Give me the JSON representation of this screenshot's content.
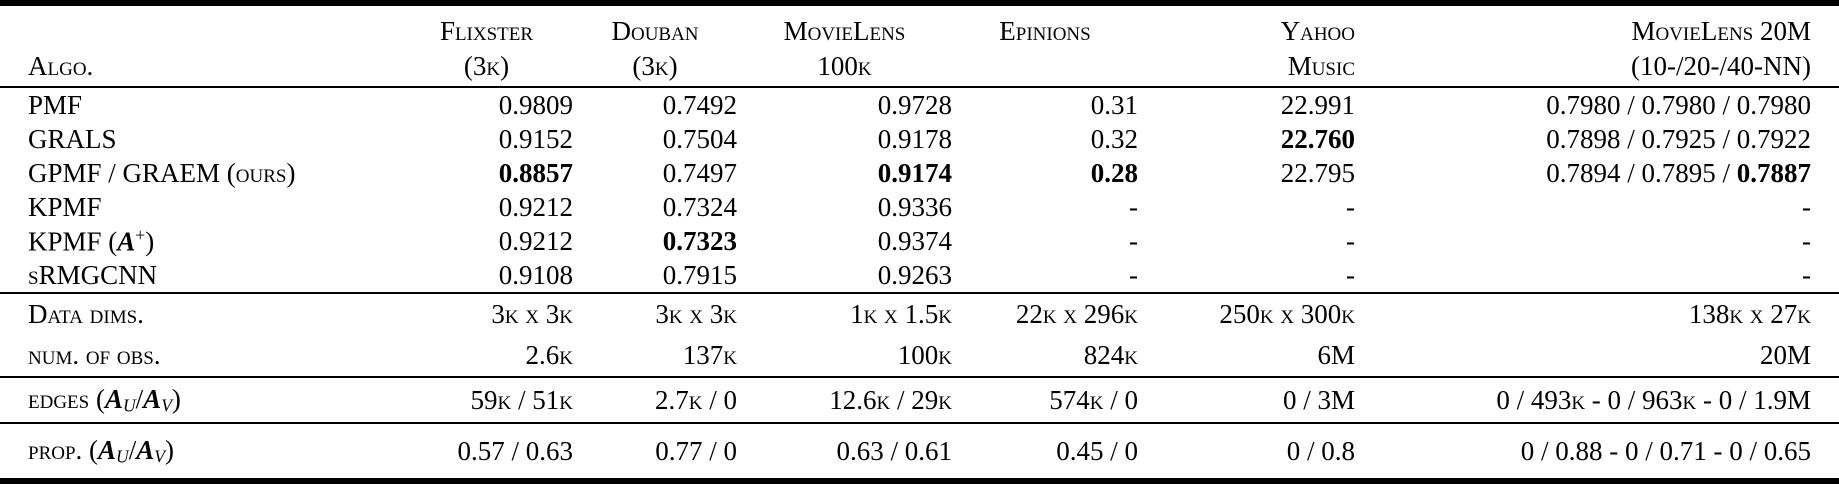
{
  "table": {
    "header": {
      "columns": [
        {
          "line1": "",
          "line2": "Algo."
        },
        {
          "line1": "Flixster",
          "line2": "(3k)"
        },
        {
          "line1": "Douban",
          "line2": "(3k)"
        },
        {
          "line1": "MovieLens",
          "line2": "100k"
        },
        {
          "line1": "Epinions",
          "line2": ""
        },
        {
          "line1": "Yahoo",
          "line2": "Music"
        },
        {
          "line1": "MovieLens 20M",
          "line2": "(10-/20-/40-NN)"
        }
      ]
    },
    "sections": {
      "results": {
        "rows": [
          {
            "label": "PMF",
            "cells": [
              "0.9809",
              "0.7492",
              "0.9728",
              "0.31",
              "22.991",
              "0.7980 / 0.7980 / 0.7980"
            ]
          },
          {
            "label": "GRALS",
            "cells": [
              "0.9152",
              "0.7504",
              "0.9178",
              "0.32",
              [
                {
                  "t": "22.760",
                  "c": "b"
                }
              ],
              "0.7898 / 0.7925 / 0.7922"
            ]
          },
          {
            "label": "GPMF / GRAEM (ours)",
            "cells": [
              [
                {
                  "t": "0.8857",
                  "c": "b"
                }
              ],
              "0.7497",
              [
                {
                  "t": "0.9174",
                  "c": "b"
                }
              ],
              [
                {
                  "t": "0.28",
                  "c": "b"
                }
              ],
              "22.795",
              [
                {
                  "t": "0.7894 / 0.7895 / "
                },
                {
                  "t": "0.7887",
                  "c": "b"
                }
              ]
            ]
          },
          {
            "label": "KPMF",
            "cells": [
              "0.9212",
              "0.7324",
              "0.9336",
              "-",
              "-",
              "-"
            ]
          },
          {
            "label": [
              {
                "t": "KPMF ("
              },
              {
                "t": "A",
                "c": "m"
              },
              {
                "t": "+",
                "c": "sup"
              },
              {
                "t": ")"
              }
            ],
            "cells": [
              "0.9212",
              [
                {
                  "t": "0.7323",
                  "c": "b"
                }
              ],
              "0.9374",
              "-",
              "-",
              "-"
            ]
          },
          {
            "label": "sRMGCNN",
            "cells": [
              "0.9108",
              "0.7915",
              "0.9263",
              "-",
              "-",
              "-"
            ]
          }
        ]
      },
      "dims": {
        "rows": [
          {
            "label": "Data dims.",
            "cells": [
              "3k x 3k",
              "3k x 3k",
              "1k x 1.5k",
              "22k x 296k",
              "250k x 300k",
              "138k x 27k"
            ]
          },
          {
            "label": "num. of obs.",
            "cells": [
              "2.6k",
              "137k",
              "100k",
              "824k",
              "6M",
              "20M"
            ]
          }
        ]
      },
      "edges": {
        "rows": [
          {
            "label": [
              {
                "t": "edges ("
              },
              {
                "t": "A",
                "c": "m"
              },
              {
                "t": "U",
                "c": "sub"
              },
              {
                "t": "/"
              },
              {
                "t": "A",
                "c": "m"
              },
              {
                "t": "V",
                "c": "sub"
              },
              {
                "t": ")"
              }
            ],
            "cells": [
              "59k / 51k",
              "2.7k / 0",
              "12.6k / 29k",
              "574k / 0",
              "0 / 3M",
              "0 / 493k - 0 / 963k - 0 / 1.9M"
            ]
          }
        ]
      },
      "prop": {
        "rows": [
          {
            "label": [
              {
                "t": "prop. ("
              },
              {
                "t": "A",
                "c": "m"
              },
              {
                "t": "U",
                "c": "sub"
              },
              {
                "t": "/"
              },
              {
                "t": "A",
                "c": "m"
              },
              {
                "t": "V",
                "c": "sub"
              },
              {
                "t": ")"
              }
            ],
            "cells": [
              "0.57 / 0.63",
              "0.77 / 0",
              "0.63 / 0.61",
              "0.45 / 0",
              "0 / 0.8",
              "0 / 0.88 - 0 / 0.71 - 0 / 0.65"
            ]
          }
        ]
      }
    }
  }
}
